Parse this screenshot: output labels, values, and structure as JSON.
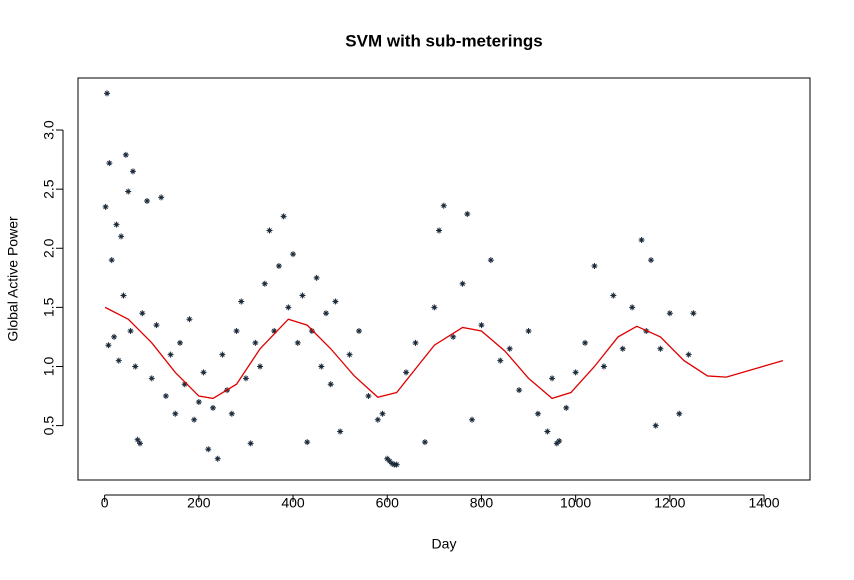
{
  "chart_data": {
    "type": "scatter",
    "title": "SVM with sub-meterings",
    "x_label": "Day",
    "y_label": "Global Active Power",
    "x": [
      2,
      5,
      8,
      10,
      15,
      20,
      25,
      30,
      35,
      40,
      45,
      50,
      55,
      60,
      65,
      70,
      75,
      80,
      90,
      100,
      110,
      120,
      130,
      140,
      150,
      160,
      170,
      180,
      190,
      200,
      210,
      220,
      230,
      240,
      250,
      260,
      270,
      280,
      290,
      300,
      310,
      320,
      330,
      340,
      350,
      360,
      370,
      380,
      390,
      400,
      410,
      420,
      430,
      440,
      450,
      460,
      470,
      480,
      490,
      500,
      520,
      540,
      560,
      580,
      590,
      600,
      605,
      610,
      615,
      620,
      640,
      660,
      680,
      700,
      710,
      720,
      740,
      760,
      770,
      780,
      800,
      820,
      840,
      860,
      880,
      900,
      920,
      940,
      950,
      960,
      965,
      980,
      1000,
      1020,
      1040,
      1060,
      1080,
      1100,
      1120,
      1140,
      1150,
      1160,
      1170,
      1180,
      1200,
      1220,
      1240,
      1250
    ],
    "values": [
      2.35,
      3.31,
      1.18,
      2.72,
      1.9,
      1.25,
      2.2,
      1.05,
      2.1,
      1.6,
      2.79,
      2.48,
      1.3,
      2.65,
      1.0,
      0.38,
      0.35,
      1.45,
      2.4,
      0.9,
      1.35,
      2.43,
      0.75,
      1.1,
      0.6,
      1.2,
      0.85,
      1.4,
      0.55,
      0.7,
      0.95,
      0.3,
      0.65,
      0.22,
      1.1,
      0.8,
      0.6,
      1.3,
      1.55,
      0.9,
      0.35,
      1.2,
      1.0,
      1.7,
      2.15,
      1.3,
      1.85,
      2.27,
      1.5,
      1.95,
      1.2,
      1.6,
      0.36,
      1.3,
      1.75,
      1.0,
      1.45,
      0.85,
      1.55,
      0.45,
      1.1,
      1.3,
      0.75,
      0.55,
      0.6,
      0.22,
      0.2,
      0.18,
      0.17,
      0.17,
      0.95,
      1.2,
      0.36,
      1.5,
      2.15,
      2.36,
      1.25,
      1.7,
      2.29,
      0.55,
      1.35,
      1.9,
      1.05,
      1.15,
      0.8,
      1.3,
      0.6,
      0.45,
      0.9,
      0.35,
      0.37,
      0.65,
      0.95,
      1.2,
      1.85,
      1.0,
      1.6,
      1.15,
      1.5,
      2.07,
      1.3,
      1.9,
      0.5,
      1.15,
      1.45,
      0.6,
      1.1,
      1.45
    ],
    "color": "#1a2a3a",
    "line": {
      "color": "#e00000",
      "x": [
        1,
        50,
        100,
        150,
        200,
        230,
        280,
        330,
        390,
        430,
        480,
        530,
        580,
        620,
        660,
        700,
        760,
        800,
        850,
        900,
        950,
        990,
        1040,
        1090,
        1130,
        1180,
        1230,
        1280,
        1320,
        1380,
        1440
      ],
      "values": [
        1.5,
        1.4,
        1.2,
        0.95,
        0.75,
        0.73,
        0.85,
        1.15,
        1.4,
        1.35,
        1.15,
        0.92,
        0.74,
        0.78,
        0.98,
        1.18,
        1.33,
        1.3,
        1.13,
        0.9,
        0.73,
        0.78,
        1.0,
        1.25,
        1.34,
        1.25,
        1.05,
        0.92,
        0.91,
        0.98,
        1.05
      ]
    },
    "xlim": [
      -56.6,
      1497.6
    ],
    "ylim": [
      0.04,
      3.44
    ],
    "xticks": [
      0,
      200,
      400,
      600,
      800,
      1000,
      1200,
      1400
    ],
    "yticks": [
      0.5,
      {
        "value": 1,
        "label": "1.0"
      },
      1.5,
      {
        "value": 2,
        "label": "2.0"
      },
      2.5,
      {
        "value": 3,
        "label": "3.0"
      }
    ]
  }
}
